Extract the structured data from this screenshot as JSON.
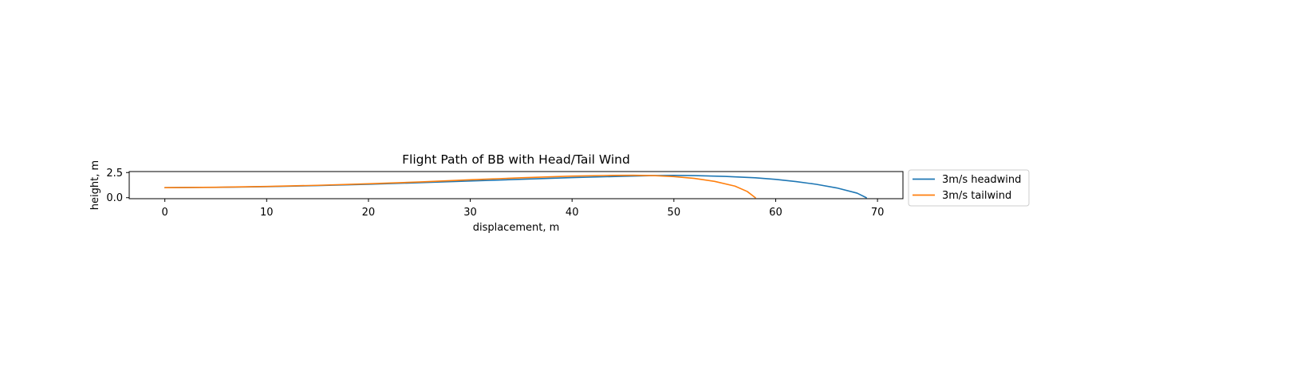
{
  "chart_data": {
    "type": "line",
    "title": "Flight Path of BB with Head/Tail Wind",
    "xlabel": "displacement, m",
    "ylabel": "height, m",
    "xlim": [
      -3.5,
      72.5
    ],
    "ylim": [
      -0.1,
      2.6
    ],
    "xticks": [
      0,
      10,
      20,
      30,
      40,
      50,
      60,
      70
    ],
    "yticks": [
      0.0,
      2.5
    ],
    "xtick_labels": [
      "0",
      "10",
      "20",
      "30",
      "40",
      "50",
      "60",
      "70"
    ],
    "ytick_labels": [
      "0.0",
      "2.5"
    ],
    "grid": false,
    "legend_position": "outside-right",
    "series": [
      {
        "name": "3m/s headwind",
        "color": "#1f77b4",
        "points": [
          [
            0,
            1.0
          ],
          [
            5,
            1.03
          ],
          [
            10,
            1.1
          ],
          [
            15,
            1.2
          ],
          [
            20,
            1.33
          ],
          [
            25,
            1.49
          ],
          [
            30,
            1.66
          ],
          [
            35,
            1.83
          ],
          [
            40,
            2.0
          ],
          [
            45,
            2.13
          ],
          [
            48,
            2.2
          ],
          [
            50,
            2.22
          ],
          [
            52,
            2.2
          ],
          [
            55,
            2.12
          ],
          [
            58,
            1.98
          ],
          [
            60,
            1.82
          ],
          [
            62,
            1.6
          ],
          [
            64,
            1.33
          ],
          [
            66,
            0.97
          ],
          [
            68,
            0.45
          ],
          [
            68.9,
            0.0
          ]
        ]
      },
      {
        "name": "3m/s tailwind",
        "color": "#ff7f0e",
        "points": [
          [
            0,
            1.0
          ],
          [
            5,
            1.04
          ],
          [
            10,
            1.12
          ],
          [
            15,
            1.23
          ],
          [
            20,
            1.38
          ],
          [
            25,
            1.56
          ],
          [
            30,
            1.78
          ],
          [
            35,
            1.98
          ],
          [
            40,
            2.15
          ],
          [
            44,
            2.22
          ],
          [
            46,
            2.23
          ],
          [
            48,
            2.2
          ],
          [
            50,
            2.1
          ],
          [
            52,
            1.92
          ],
          [
            54,
            1.62
          ],
          [
            56,
            1.15
          ],
          [
            57.2,
            0.62
          ],
          [
            58.0,
            0.0
          ]
        ]
      }
    ]
  }
}
